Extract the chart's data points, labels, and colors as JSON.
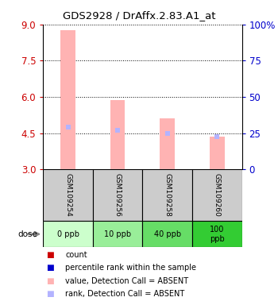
{
  "title": "GDS2928 / DrAffx.2.83.A1_at",
  "samples": [
    "GSM109254",
    "GSM109256",
    "GSM109258",
    "GSM109260"
  ],
  "doses": [
    "0 ppb",
    "10 ppb",
    "40 ppb",
    "100\nppb"
  ],
  "bar_values": [
    8.75,
    5.85,
    5.1,
    4.35
  ],
  "rank_values": [
    4.75,
    4.6,
    4.5,
    4.35
  ],
  "bar_color_absent": "#ffb3b3",
  "rank_color_absent": "#b3b3ff",
  "ylim_left": [
    3.0,
    9.0
  ],
  "ylim_right": [
    0,
    100
  ],
  "yticks_left": [
    3.0,
    4.5,
    6.0,
    7.5,
    9.0
  ],
  "yticks_right": [
    0,
    25,
    50,
    75,
    100
  ],
  "left_tick_color": "#cc0000",
  "right_tick_color": "#0000cc",
  "dose_bg_colors": [
    "#ccffcc",
    "#99ee99",
    "#66dd66",
    "#33cc33"
  ],
  "sample_bg_color": "#cccccc",
  "legend_colors": [
    "#cc0000",
    "#0000cc",
    "#ffb3b3",
    "#b3b3ff"
  ],
  "legend_labels": [
    "count",
    "percentile rank within the sample",
    "value, Detection Call = ABSENT",
    "rank, Detection Call = ABSENT"
  ]
}
